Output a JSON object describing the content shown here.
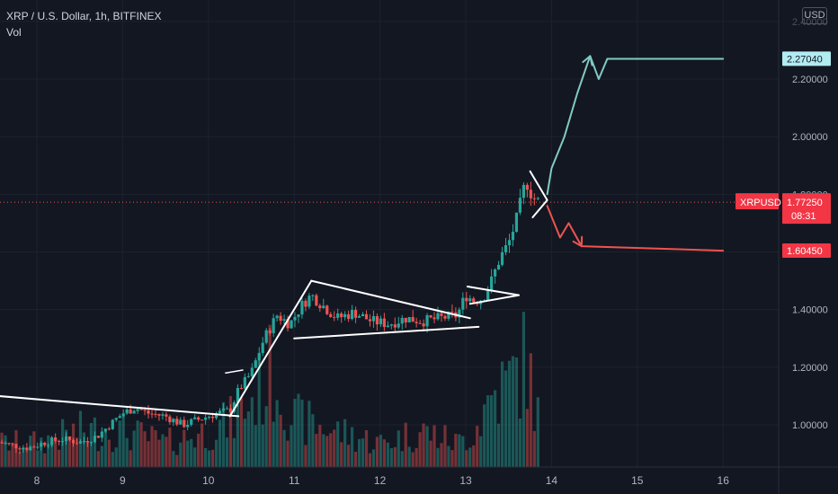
{
  "header": {
    "title": "XRP / U.S. Dollar, 1h, BITFINEX",
    "volume_label": "Vol"
  },
  "currency_button": "USD",
  "price_axis_labels": [
    "2.20000",
    "2.00000",
    "1.80000",
    "1.40000",
    "1.20000",
    "1.00000"
  ],
  "price_axis_top_label": "2.40000",
  "date_axis_labels": [
    "8",
    "9",
    "10",
    "11",
    "12",
    "13",
    "14",
    "15",
    "16"
  ],
  "badges": {
    "target_up": "2.27040",
    "symbol": "XRPUSD",
    "last_price": "1.77250",
    "countdown": "08:31",
    "target_down": "1.60450"
  },
  "colors": {
    "background": "#131722",
    "up_candle": "#26a69a",
    "down_candle": "#ef5350",
    "pattern_lines": "#ffffff",
    "bull_path": "#80cbc4",
    "bear_path": "#ef5350",
    "bull_badge": "#b2ebf2",
    "bear_badge": "#f23645"
  },
  "chart_data": {
    "type": "candlestick",
    "symbol": "XRPUSD",
    "interval": "1h",
    "exchange": "BITFINEX",
    "ylim": [
      0.88,
      2.47
    ],
    "xlim": [
      7.55,
      17.0
    ],
    "grid": true,
    "last_price": 1.7725,
    "volume_shown": true,
    "close_path": [
      [
        7.55,
        0.94
      ],
      [
        7.7,
        0.93
      ],
      [
        7.9,
        0.92
      ],
      [
        8.1,
        0.94
      ],
      [
        8.3,
        0.95
      ],
      [
        8.5,
        0.94
      ],
      [
        8.7,
        0.96
      ],
      [
        8.85,
        1.0
      ],
      [
        9.0,
        1.04
      ],
      [
        9.15,
        1.06
      ],
      [
        9.3,
        1.04
      ],
      [
        9.5,
        1.03
      ],
      [
        9.7,
        1.0
      ],
      [
        9.9,
        1.02
      ],
      [
        10.1,
        1.04
      ],
      [
        10.25,
        1.05
      ],
      [
        10.35,
        1.12
      ],
      [
        10.5,
        1.18
      ],
      [
        10.65,
        1.3
      ],
      [
        10.8,
        1.38
      ],
      [
        10.95,
        1.35
      ],
      [
        11.1,
        1.42
      ],
      [
        11.2,
        1.45
      ],
      [
        11.35,
        1.41
      ],
      [
        11.5,
        1.37
      ],
      [
        11.7,
        1.39
      ],
      [
        11.9,
        1.36
      ],
      [
        12.1,
        1.35
      ],
      [
        12.3,
        1.37
      ],
      [
        12.5,
        1.36
      ],
      [
        12.7,
        1.37
      ],
      [
        12.9,
        1.38
      ],
      [
        13.0,
        1.45
      ],
      [
        13.1,
        1.43
      ],
      [
        13.2,
        1.44
      ],
      [
        13.3,
        1.5
      ],
      [
        13.4,
        1.58
      ],
      [
        13.5,
        1.63
      ],
      [
        13.6,
        1.72
      ],
      [
        13.7,
        1.85
      ],
      [
        13.78,
        1.79
      ],
      [
        13.85,
        1.7725
      ]
    ],
    "volume_profile": [
      [
        7.55,
        2
      ],
      [
        8.0,
        2
      ],
      [
        8.5,
        3
      ],
      [
        9.0,
        3
      ],
      [
        9.5,
        2
      ],
      [
        10.0,
        3
      ],
      [
        10.3,
        4
      ],
      [
        10.55,
        6
      ],
      [
        10.75,
        8
      ],
      [
        11.0,
        4
      ],
      [
        11.5,
        3
      ],
      [
        12.0,
        2
      ],
      [
        12.5,
        3
      ],
      [
        12.9,
        2
      ],
      [
        13.1,
        3
      ],
      [
        13.3,
        6
      ],
      [
        13.5,
        7
      ],
      [
        13.7,
        9
      ],
      [
        13.85,
        4
      ]
    ],
    "annotations": {
      "downtrend_line": [
        [
          7.55,
          1.1
        ],
        [
          10.35,
          1.03
        ]
      ],
      "flag_pole": [
        [
          10.25,
          1.03
        ],
        [
          11.2,
          1.5
        ]
      ],
      "small_flag_top": [
        [
          10.2,
          1.18
        ],
        [
          10.4,
          1.19
        ]
      ],
      "triangle_upper": [
        [
          11.2,
          1.5
        ],
        [
          13.05,
          1.37
        ]
      ],
      "triangle_lower": [
        [
          11.0,
          1.3
        ],
        [
          13.15,
          1.34
        ]
      ],
      "pennant": [
        [
          13.02,
          1.48
        ],
        [
          13.62,
          1.45
        ],
        [
          13.05,
          1.42
        ]
      ],
      "wedge": [
        [
          13.75,
          1.88
        ],
        [
          13.95,
          1.78
        ],
        [
          13.78,
          1.72
        ]
      ],
      "bull_scenario": [
        [
          13.95,
          1.8
        ],
        [
          14.0,
          1.89
        ],
        [
          14.15,
          2.0
        ],
        [
          14.3,
          2.15
        ],
        [
          14.45,
          2.28
        ],
        [
          14.55,
          2.2
        ],
        [
          14.65,
          2.27
        ],
        [
          16.0,
          2.27
        ]
      ],
      "bear_scenario": [
        [
          13.95,
          1.76
        ],
        [
          14.1,
          1.65
        ],
        [
          14.2,
          1.7
        ],
        [
          14.35,
          1.62
        ],
        [
          16.0,
          1.6045
        ]
      ],
      "target_up": 2.2704,
      "target_down": 1.6045
    }
  }
}
